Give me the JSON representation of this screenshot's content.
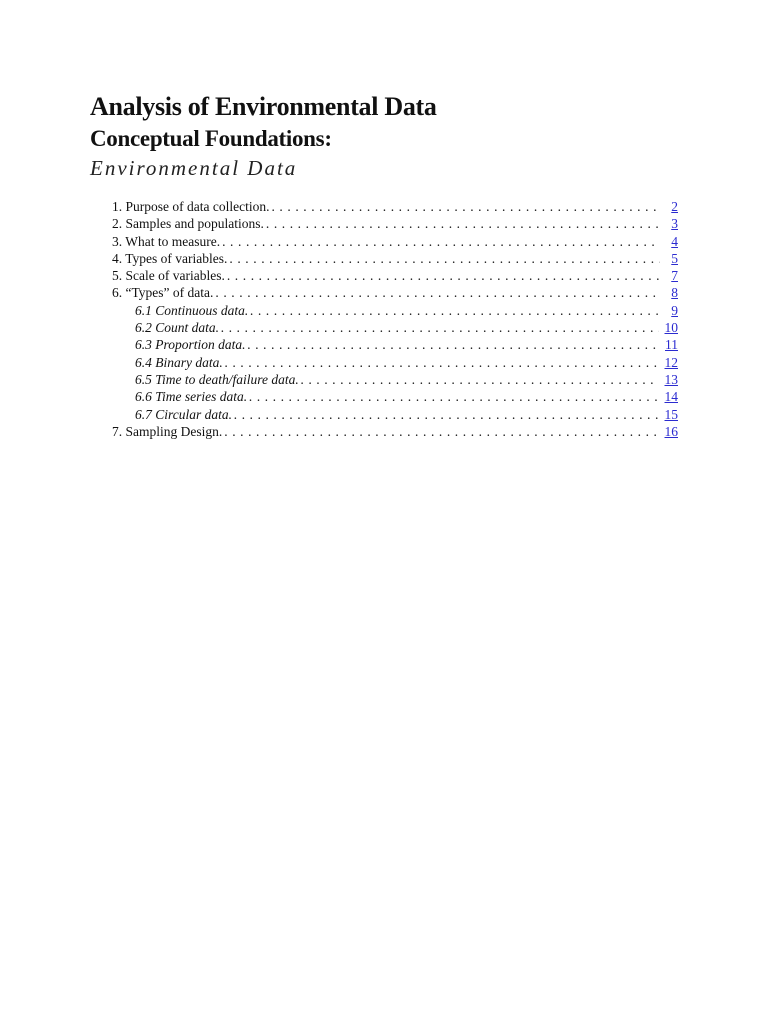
{
  "title": "Analysis of Environmental Data",
  "subtitle": "Conceptual Foundations:",
  "section": "Environmental Data",
  "link_color": "#2b2bd0",
  "toc": [
    {
      "label": "1. Purpose of data collection.",
      "page": "2",
      "sub": false
    },
    {
      "label": "2. Samples and populations.",
      "page": "3",
      "sub": false
    },
    {
      "label": "3. What to measure.",
      "page": "4",
      "sub": false
    },
    {
      "label": "4. Types of variables.",
      "page": "5",
      "sub": false
    },
    {
      "label": "5. Scale of variables.",
      "page": "7",
      "sub": false
    },
    {
      "label": "6. “Types” of data.",
      "page": "8",
      "sub": false
    },
    {
      "label": "6.1 Continuous data.",
      "page": "9",
      "sub": true
    },
    {
      "label": "6.2 Count data.",
      "page": "10",
      "sub": true
    },
    {
      "label": "6.3 Proportion data.",
      "page": "11",
      "sub": true
    },
    {
      "label": "6.4 Binary data.",
      "page": "12",
      "sub": true
    },
    {
      "label": "6.5 Time to death/failure data.",
      "page": "13",
      "sub": true
    },
    {
      "label": "6.6 Time series data.",
      "page": "14",
      "sub": true
    },
    {
      "label": "6.7 Circular data.",
      "page": "15",
      "sub": true
    },
    {
      "label": "7. Sampling Design.",
      "page": "16",
      "sub": false
    }
  ]
}
